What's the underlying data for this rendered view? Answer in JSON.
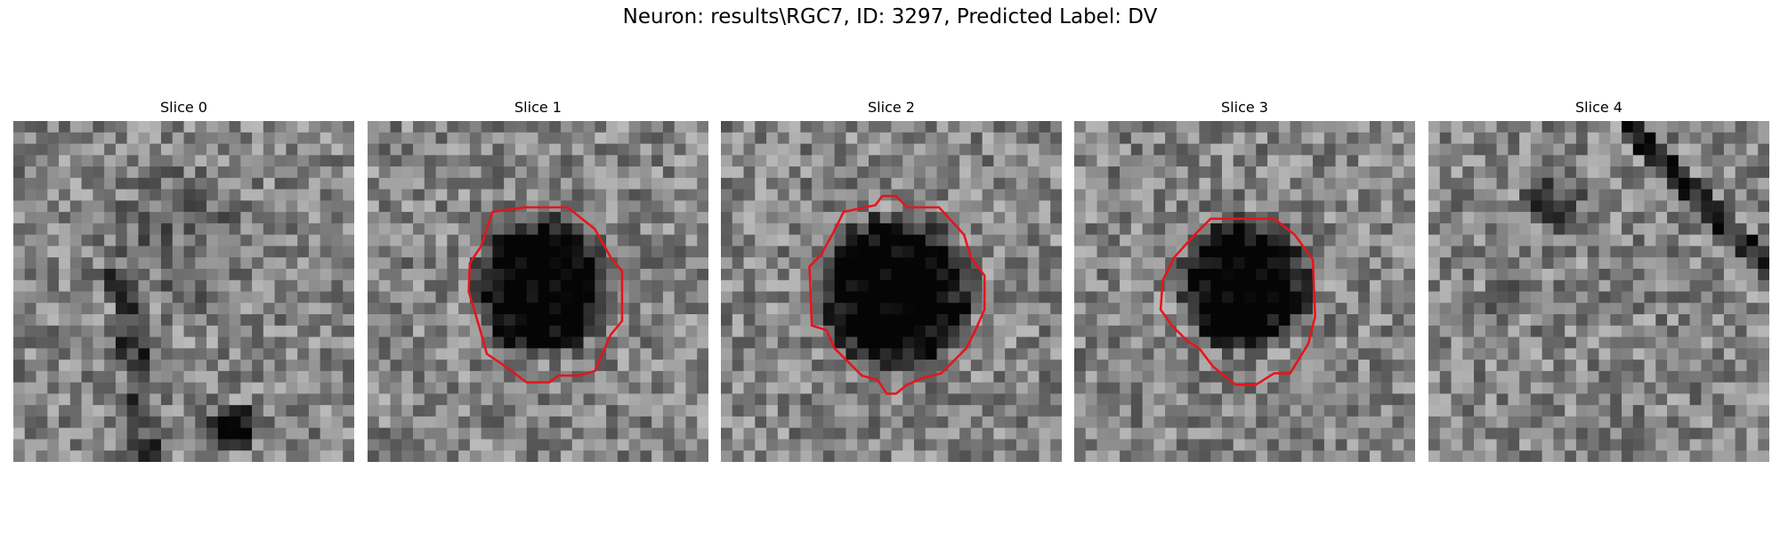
{
  "figure": {
    "title": "Neuron: results\\RGC7, ID: 3297, Predicted Label: DV"
  },
  "slices": [
    {
      "label": "Slice 0",
      "has_contour": false
    },
    {
      "label": "Slice 1",
      "has_contour": true
    },
    {
      "label": "Slice 2",
      "has_contour": true
    },
    {
      "label": "Slice 3",
      "has_contour": true
    },
    {
      "label": "Slice 4",
      "has_contour": false
    }
  ],
  "colors": {
    "contour": "#e8141b"
  }
}
